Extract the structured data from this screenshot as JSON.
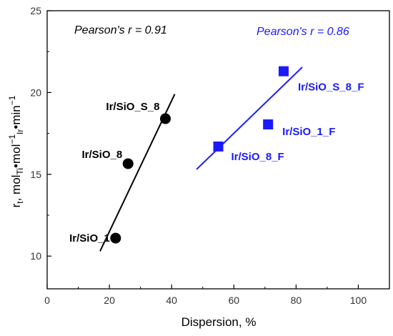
{
  "chart_data": {
    "type": "scatter",
    "xlabel": "Dispersion, %",
    "ylabel_parts": {
      "r": "r",
      "sub_t": "t",
      "comma": ", mol",
      "sub_ti": "Ti",
      "dot1": "•mol",
      "sup_m1": "−1",
      "sub_ir": "Ir",
      "dot2": "•min",
      "sup_m1b": "−1"
    },
    "xlim": [
      0,
      110
    ],
    "ylim": [
      8,
      25
    ],
    "x_ticks": [
      0,
      20,
      40,
      60,
      80,
      100
    ],
    "y_ticks": [
      10,
      15,
      20,
      25
    ],
    "grid": false,
    "series": [
      {
        "color": "#000000",
        "marker": "circle",
        "points": [
          {
            "x": 22,
            "y": 11.1,
            "label": "Ir/SiO_1"
          },
          {
            "x": 26,
            "y": 15.65,
            "label": "Ir/SiO_8"
          },
          {
            "x": 38,
            "y": 18.4,
            "label": "Ir/SiO_S_8"
          }
        ],
        "fit_line": {
          "x": [
            17,
            41
          ],
          "y": [
            10.3,
            19.9
          ]
        },
        "annotation": "Pearson's r = 0.91"
      },
      {
        "color": "#1a1aff",
        "marker": "square",
        "points": [
          {
            "x": 55,
            "y": 16.7,
            "label": "Ir/SiO_8_F"
          },
          {
            "x": 71,
            "y": 18.05,
            "label": "Ir/SiO_1_F"
          },
          {
            "x": 76,
            "y": 21.3,
            "label": "Ir/SiO_S_8_F"
          }
        ],
        "fit_line": {
          "x": [
            48,
            82
          ],
          "y": [
            15.3,
            21.55
          ]
        },
        "annotation": "Pearson's r = 0.86"
      }
    ]
  }
}
